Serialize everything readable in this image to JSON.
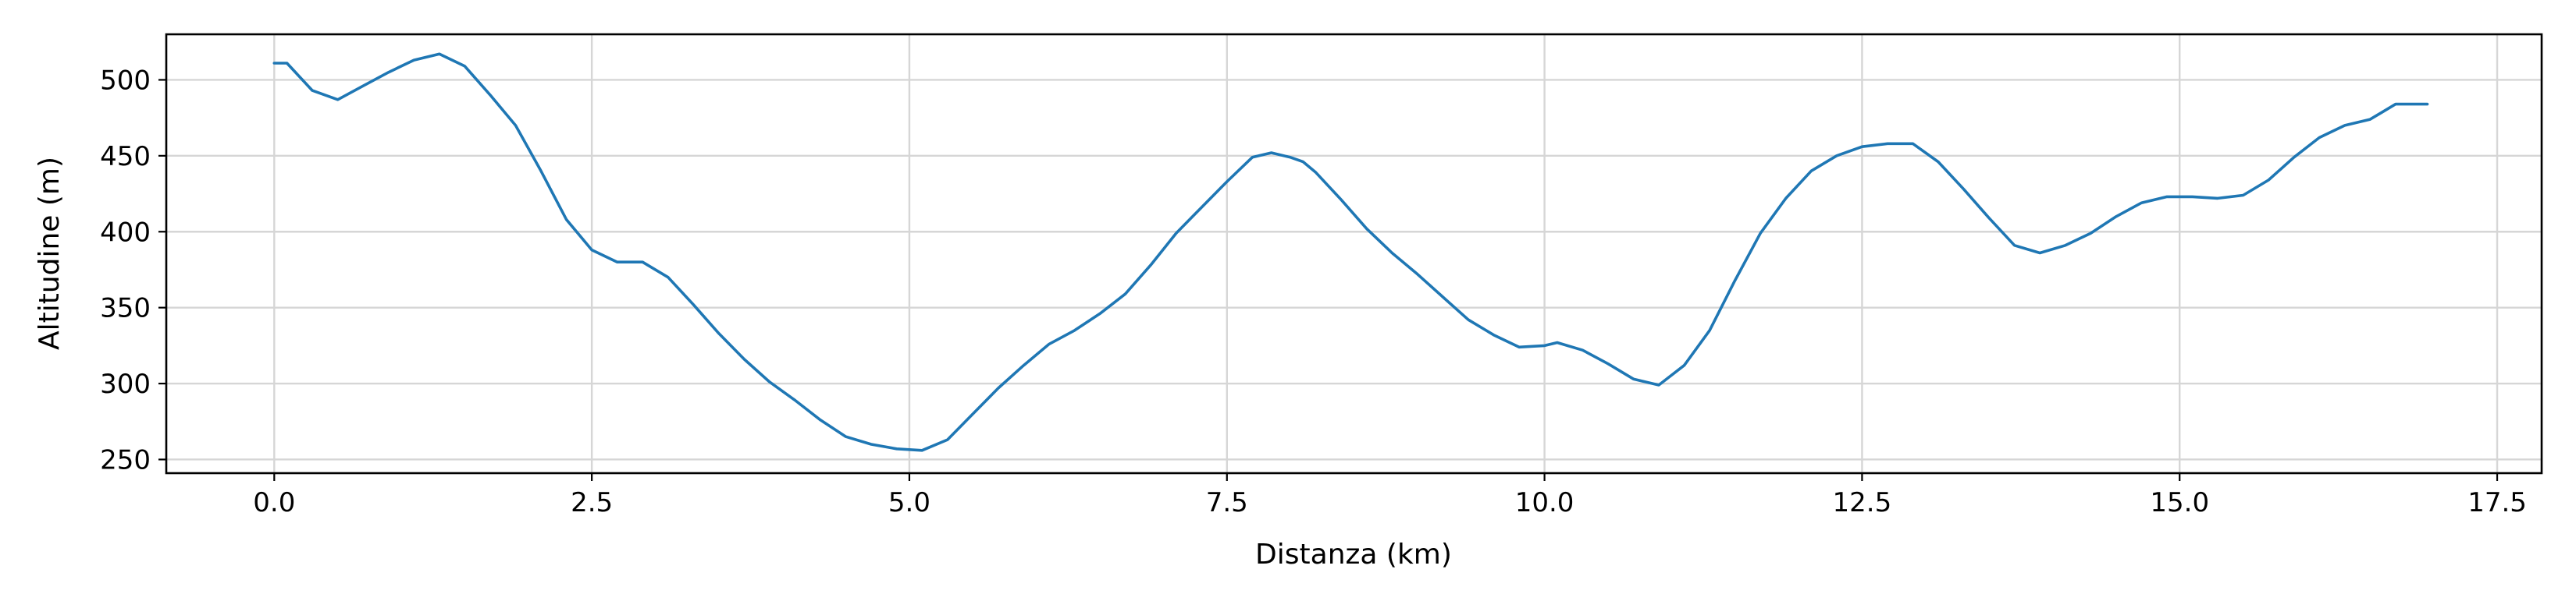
{
  "chart_data": {
    "type": "line",
    "title": "",
    "xlabel": "Distanza (km)",
    "ylabel": "Altitudine (m)",
    "xlim": [
      -0.85,
      17.85
    ],
    "ylim": [
      241,
      530
    ],
    "xticks": [
      0.0,
      2.5,
      5.0,
      7.5,
      10.0,
      12.5,
      15.0,
      17.5
    ],
    "xtick_labels": [
      "0.0",
      "2.5",
      "5.0",
      "7.5",
      "10.0",
      "12.5",
      "15.0",
      "17.5"
    ],
    "yticks": [
      250,
      300,
      350,
      400,
      450,
      500
    ],
    "ytick_labels": [
      "250",
      "300",
      "350",
      "400",
      "450",
      "500"
    ],
    "grid": true,
    "legend": "none",
    "color": "#1f77b4",
    "series": [
      {
        "x": [
          0.0,
          0.1,
          0.3,
          0.5,
          0.7,
          0.9,
          1.1,
          1.3,
          1.5,
          1.7,
          1.9,
          2.1,
          2.3,
          2.5,
          2.7,
          2.9,
          3.1,
          3.3,
          3.5,
          3.7,
          3.9,
          4.1,
          4.3,
          4.5,
          4.7,
          4.9,
          5.1,
          5.3,
          5.5,
          5.7,
          5.9,
          6.1,
          6.3,
          6.5,
          6.7,
          6.9,
          7.1,
          7.3,
          7.5,
          7.7,
          7.85,
          8.0,
          8.1,
          8.2,
          8.4,
          8.6,
          8.8,
          9.0,
          9.2,
          9.4,
          9.6,
          9.8,
          10.0,
          10.1,
          10.3,
          10.5,
          10.7,
          10.9,
          11.1,
          11.3,
          11.5,
          11.7,
          11.9,
          12.1,
          12.3,
          12.5,
          12.7,
          12.9,
          13.1,
          13.3,
          13.5,
          13.7,
          13.9,
          14.1,
          14.3,
          14.5,
          14.7,
          14.9,
          15.1,
          15.3,
          15.5,
          15.7,
          15.9,
          16.1,
          16.3,
          16.5,
          16.7,
          16.8,
          16.95
        ],
        "y": [
          511,
          511,
          493,
          487,
          496,
          505,
          513,
          517,
          509,
          490,
          470,
          440,
          408,
          388,
          380,
          380,
          370,
          352,
          333,
          316,
          301,
          289,
          276,
          265,
          260,
          257,
          256,
          263,
          280,
          297,
          312,
          326,
          335,
          346,
          359,
          378,
          399,
          416,
          433,
          449,
          452,
          449,
          446,
          439,
          421,
          402,
          386,
          372,
          357,
          342,
          332,
          324,
          325,
          327,
          322,
          313,
          303,
          299,
          312,
          335,
          368,
          399,
          422,
          440,
          450,
          456,
          458,
          458,
          446,
          428,
          409,
          391,
          386,
          391,
          399,
          410,
          419,
          423,
          423,
          422,
          424,
          434,
          449,
          462,
          470,
          474,
          484,
          484,
          484
        ]
      }
    ]
  }
}
